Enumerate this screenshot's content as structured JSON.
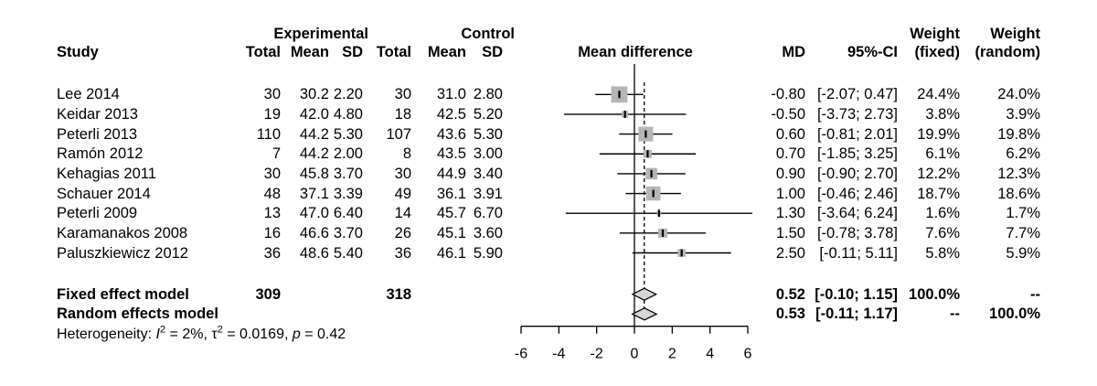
{
  "header": {
    "study": "Study",
    "experimental": "Experimental",
    "control": "Control",
    "total": "Total",
    "mean": "Mean",
    "sd": "SD",
    "md": "MD",
    "ci": "95%-CI",
    "weight": "Weight",
    "fixed": "(fixed)",
    "random": "(random)"
  },
  "studies": [
    {
      "name": "Lee 2014",
      "exp_total": "30",
      "exp_mean": "30.2",
      "exp_sd": "2.20",
      "ctrl_total": "30",
      "ctrl_mean": "31.0",
      "ctrl_sd": "2.80",
      "md": "-0.80",
      "ci": "[-2.07; 0.47]",
      "w_fixed": "24.4%",
      "w_random": "24.0%"
    },
    {
      "name": "Keidar 2013",
      "exp_total": "19",
      "exp_mean": "42.0",
      "exp_sd": "4.80",
      "ctrl_total": "18",
      "ctrl_mean": "42.5",
      "ctrl_sd": "5.20",
      "md": "-0.50",
      "ci": "[-3.73; 2.73]",
      "w_fixed": "3.8%",
      "w_random": "3.9%"
    },
    {
      "name": "Peterli 2013",
      "exp_total": "110",
      "exp_mean": "44.2",
      "exp_sd": "5.30",
      "ctrl_total": "107",
      "ctrl_mean": "43.6",
      "ctrl_sd": "5.30",
      "md": "0.60",
      "ci": "[-0.81; 2.01]",
      "w_fixed": "19.9%",
      "w_random": "19.8%"
    },
    {
      "name": "Ramón 2012",
      "exp_total": "7",
      "exp_mean": "44.2",
      "exp_sd": "2.00",
      "ctrl_total": "8",
      "ctrl_mean": "43.5",
      "ctrl_sd": "3.00",
      "md": "0.70",
      "ci": "[-1.85; 3.25]",
      "w_fixed": "6.1%",
      "w_random": "6.2%"
    },
    {
      "name": "Kehagias 2011",
      "exp_total": "30",
      "exp_mean": "45.8",
      "exp_sd": "3.70",
      "ctrl_total": "30",
      "ctrl_mean": "44.9",
      "ctrl_sd": "3.40",
      "md": "0.90",
      "ci": "[-0.90; 2.70]",
      "w_fixed": "12.2%",
      "w_random": "12.3%"
    },
    {
      "name": "Schauer 2014",
      "exp_total": "48",
      "exp_mean": "37.1",
      "exp_sd": "3.39",
      "ctrl_total": "49",
      "ctrl_mean": "36.1",
      "ctrl_sd": "3.91",
      "md": "1.00",
      "ci": "[-0.46; 2.46]",
      "w_fixed": "18.7%",
      "w_random": "18.6%"
    },
    {
      "name": "Peterli 2009",
      "exp_total": "13",
      "exp_mean": "47.0",
      "exp_sd": "6.40",
      "ctrl_total": "14",
      "ctrl_mean": "45.7",
      "ctrl_sd": "6.70",
      "md": "1.30",
      "ci": "[-3.64; 6.24]",
      "w_fixed": "1.6%",
      "w_random": "1.7%"
    },
    {
      "name": "Karamanakos 2008",
      "exp_total": "16",
      "exp_mean": "46.6",
      "exp_sd": "3.70",
      "ctrl_total": "26",
      "ctrl_mean": "45.1",
      "ctrl_sd": "3.60",
      "md": "1.50",
      "ci": "[-0.78; 3.78]",
      "w_fixed": "7.6%",
      "w_random": "7.7%"
    },
    {
      "name": "Paluszkiewicz 2012",
      "exp_total": "36",
      "exp_mean": "48.6",
      "exp_sd": "5.40",
      "ctrl_total": "36",
      "ctrl_mean": "46.1",
      "ctrl_sd": "5.90",
      "md": "2.50",
      "ci": "[-0.11; 5.11]",
      "w_fixed": "5.8%",
      "w_random": "5.9%"
    }
  ],
  "summary": {
    "fixed": {
      "label": "Fixed effect model",
      "total_exp": "309",
      "total_ctrl": "318",
      "md": "0.52",
      "ci": "[-0.10; 1.15]",
      "w_fixed": "100.0%",
      "w_random": "--"
    },
    "random": {
      "label": "Random effects model",
      "md": "0.53",
      "ci": "[-0.11; 1.17]",
      "w_fixed": "--",
      "w_random": "100.0%"
    }
  },
  "heterogeneity": {
    "parts": [
      {
        "t": "Heterogeneity: "
      },
      {
        "t": "I",
        "style": "italic"
      },
      {
        "t": "2",
        "style": "sup"
      },
      {
        "t": " = 2%, τ"
      },
      {
        "t": "2",
        "style": "sup"
      },
      {
        "t": " = 0.0169, "
      },
      {
        "t": "p",
        "style": "italic"
      },
      {
        "t": " = 0.42"
      }
    ]
  },
  "colors": {
    "line": "#000000",
    "square": "#b5b5b5",
    "diamond": "#d6d6d6",
    "text": "#000000",
    "background": "#ffffff"
  },
  "chart_data": {
    "type": "scatter",
    "subtype": "forest-plot",
    "title": "Mean difference",
    "x_axis": {
      "range": [
        -6,
        6
      ],
      "ticks": [
        -6,
        -4,
        -2,
        0,
        2,
        4,
        6
      ]
    },
    "reference_line_at": 0,
    "dashed_line_at": 0.52,
    "points": [
      {
        "label": "Lee 2014",
        "md": -0.8,
        "ci": [
          -2.07,
          0.47
        ],
        "weight_fixed": 24.4,
        "weight_random": 24.0
      },
      {
        "label": "Keidar 2013",
        "md": -0.5,
        "ci": [
          -3.73,
          2.73
        ],
        "weight_fixed": 3.8,
        "weight_random": 3.9
      },
      {
        "label": "Peterli 2013",
        "md": 0.6,
        "ci": [
          -0.81,
          2.01
        ],
        "weight_fixed": 19.9,
        "weight_random": 19.8
      },
      {
        "label": "Ramón 2012",
        "md": 0.7,
        "ci": [
          -1.85,
          3.25
        ],
        "weight_fixed": 6.1,
        "weight_random": 6.2
      },
      {
        "label": "Kehagias 2011",
        "md": 0.9,
        "ci": [
          -0.9,
          2.7
        ],
        "weight_fixed": 12.2,
        "weight_random": 12.3
      },
      {
        "label": "Schauer 2014",
        "md": 1.0,
        "ci": [
          -0.46,
          2.46
        ],
        "weight_fixed": 18.7,
        "weight_random": 18.6
      },
      {
        "label": "Peterli 2009",
        "md": 1.3,
        "ci": [
          -3.64,
          6.24
        ],
        "weight_fixed": 1.6,
        "weight_random": 1.7
      },
      {
        "label": "Karamanakos 2008",
        "md": 1.5,
        "ci": [
          -0.78,
          3.78
        ],
        "weight_fixed": 7.6,
        "weight_random": 7.7
      },
      {
        "label": "Paluszkiewicz 2012",
        "md": 2.5,
        "ci": [
          -0.11,
          5.11
        ],
        "weight_fixed": 5.8,
        "weight_random": 5.9
      }
    ],
    "summaries": [
      {
        "label": "Fixed effect model",
        "md": 0.52,
        "ci": [
          -0.1,
          1.15
        ]
      },
      {
        "label": "Random effects model",
        "md": 0.53,
        "ci": [
          -0.11,
          1.17
        ]
      }
    ],
    "heterogeneity_text": "Heterogeneity: I2 = 2%, τ2 = 0.0169, p = 0.42"
  }
}
